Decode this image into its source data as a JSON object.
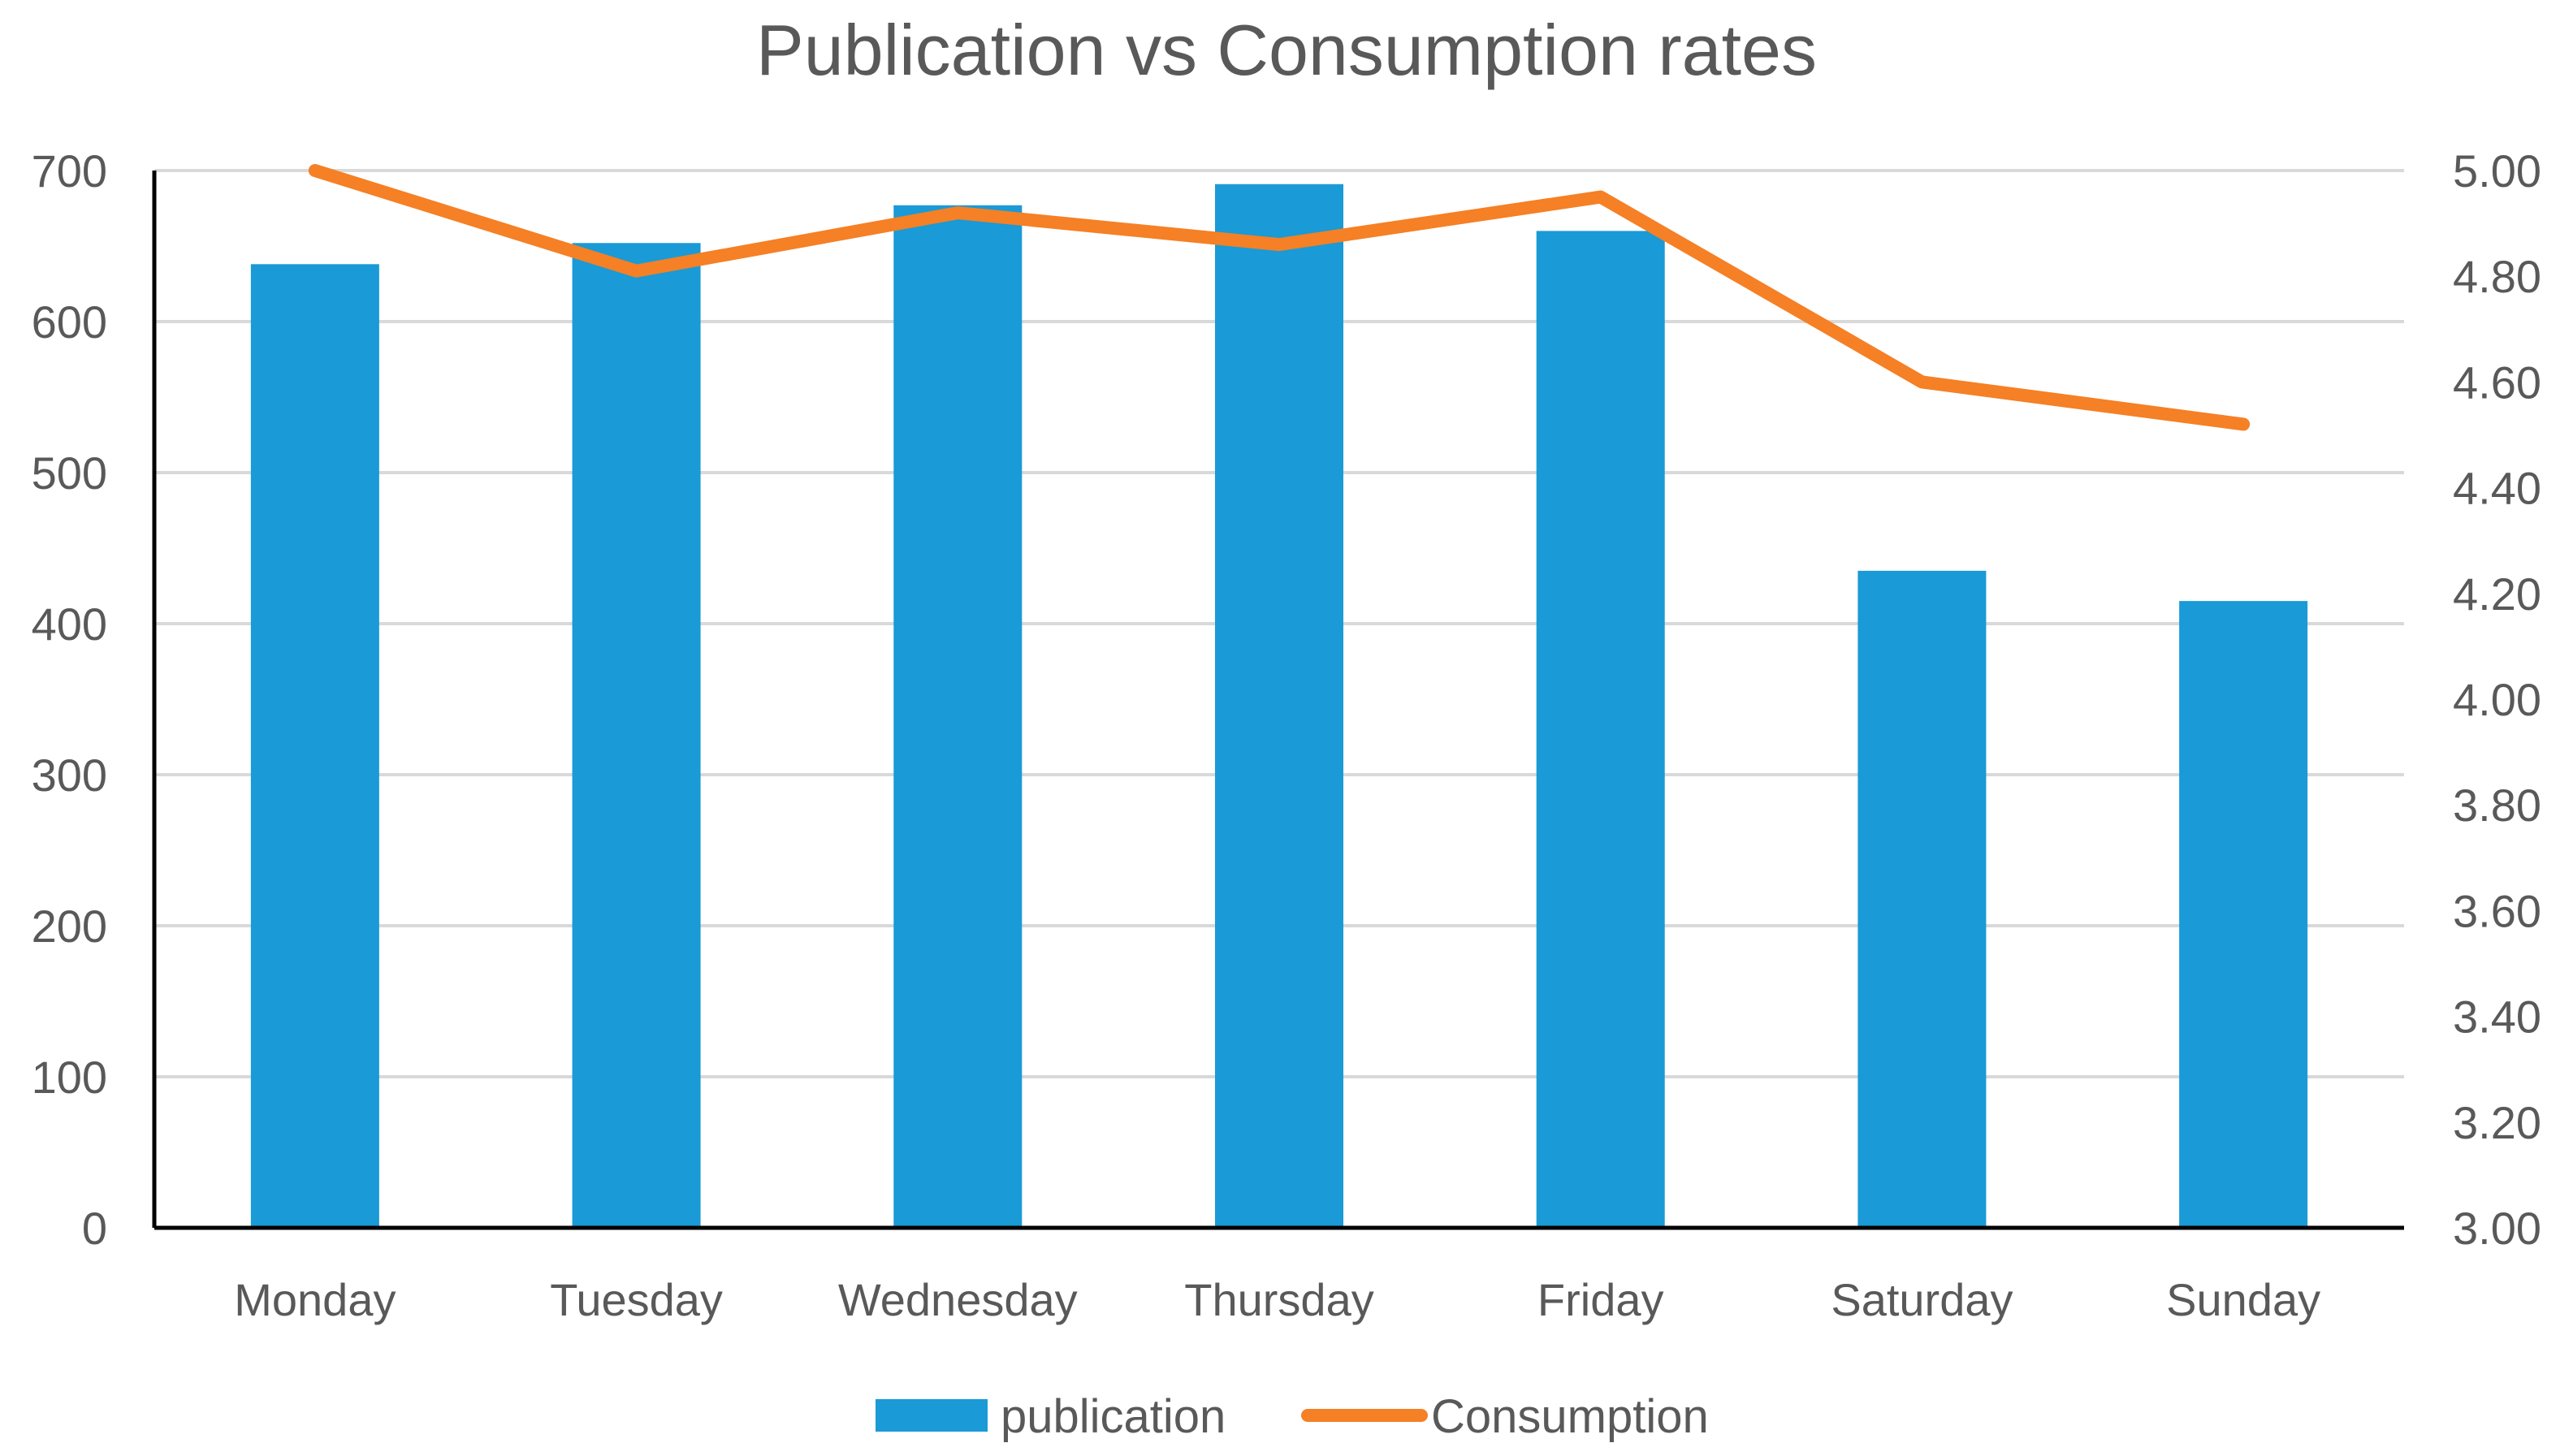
{
  "chart_data": {
    "type": "bar",
    "title": "Publication vs Consumption rates",
    "categories": [
      "Monday",
      "Tuesday",
      "Wednesday",
      "Thursday",
      "Friday",
      "Saturday",
      "Sunday"
    ],
    "series": [
      {
        "name": "publication",
        "type": "bar",
        "axis": "left",
        "color": "#1a9ad6",
        "values": [
          638,
          652,
          677,
          691,
          660,
          435,
          415
        ]
      },
      {
        "name": "Consumption",
        "type": "line",
        "axis": "right",
        "color": "#f58025",
        "values": [
          5.0,
          4.81,
          4.92,
          4.86,
          4.95,
          4.6,
          4.52
        ]
      }
    ],
    "left_axis": {
      "min": 0,
      "max": 700,
      "ticks": [
        0,
        100,
        200,
        300,
        400,
        500,
        600,
        700
      ],
      "tick_labels": [
        "0",
        "100",
        "200",
        "300",
        "400",
        "500",
        "600",
        "700"
      ]
    },
    "right_axis": {
      "min": 3.0,
      "max": 5.0,
      "ticks": [
        3.0,
        3.2,
        3.4,
        3.6,
        3.8,
        4.0,
        4.2,
        4.4,
        4.6,
        4.8,
        5.0
      ],
      "tick_labels": [
        "3.00",
        "3.20",
        "3.40",
        "3.60",
        "3.80",
        "4.00",
        "4.20",
        "4.40",
        "4.60",
        "4.80",
        "5.00"
      ]
    },
    "grid": true,
    "legend_position": "bottom",
    "colors": {
      "grid": "#d9d9d9",
      "axis": "#000000",
      "text": "#595959"
    }
  }
}
